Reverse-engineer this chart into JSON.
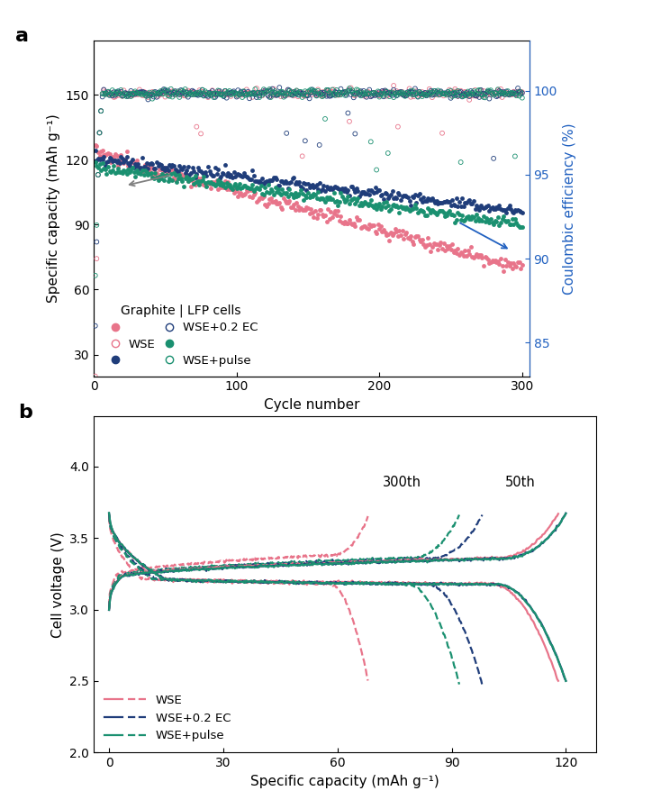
{
  "fig_width": 7.44,
  "fig_height": 8.98,
  "panel_a": {
    "xlabel": "Cycle number",
    "ylabel_left": "Specific capacity (mAh g⁻¹)",
    "ylabel_right": "Coulombic efficiency (%)",
    "xlim": [
      0,
      305
    ],
    "ylim_left": [
      20,
      175
    ],
    "ylim_right": [
      83,
      103
    ],
    "yticks_left": [
      30,
      60,
      90,
      120,
      150
    ],
    "yticks_right": [
      85,
      90,
      95,
      100
    ],
    "xticks": [
      0,
      100,
      200,
      300
    ],
    "colors": {
      "WSE": "#e8748a",
      "WSE_EC": "#1f3d7a",
      "WSE_pulse": "#1a9070"
    },
    "legend_title": "Graphite | LFP cells"
  },
  "panel_b": {
    "xlabel": "Specific capacity (mAh g⁻¹)",
    "ylabel": "Cell voltage (V)",
    "xlim": [
      -4,
      128
    ],
    "ylim": [
      2.0,
      4.35
    ],
    "yticks": [
      2.0,
      2.5,
      3.0,
      3.5,
      4.0
    ],
    "xticks": [
      0,
      30,
      60,
      90,
      120
    ],
    "colors": {
      "WSE": "#e8748a",
      "WSE_EC": "#1f3d7a",
      "WSE_pulse": "#1a9070"
    },
    "annotation_300": "300th",
    "annotation_50": "50th"
  }
}
